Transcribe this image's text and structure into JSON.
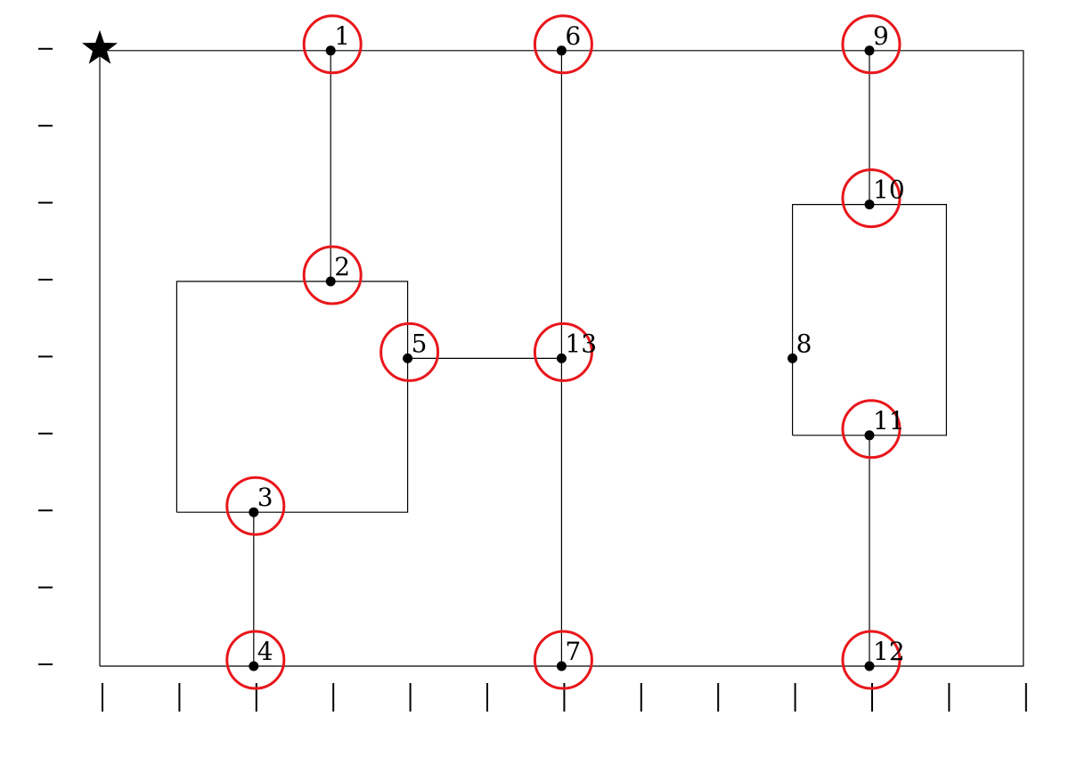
{
  "grid": {
    "cols": 12,
    "rows": 8
  },
  "start_marker": {
    "col": 0,
    "row": 8,
    "icon": "star-icon"
  },
  "colors": {
    "ring": "#e8161b",
    "line": "#000000"
  },
  "nodes": [
    {
      "id": "1",
      "label": "1",
      "col": 3,
      "row": 8,
      "ring": true
    },
    {
      "id": "2",
      "label": "2",
      "col": 3,
      "row": 5,
      "ring": true
    },
    {
      "id": "3",
      "label": "3",
      "col": 2,
      "row": 2,
      "ring": true
    },
    {
      "id": "4",
      "label": "4",
      "col": 2,
      "row": 0,
      "ring": true
    },
    {
      "id": "5",
      "label": "5",
      "col": 4,
      "row": 4,
      "ring": true
    },
    {
      "id": "6",
      "label": "6",
      "col": 6,
      "row": 8,
      "ring": true
    },
    {
      "id": "7",
      "label": "7",
      "col": 6,
      "row": 0,
      "ring": true
    },
    {
      "id": "8",
      "label": "8",
      "col": 9,
      "row": 4,
      "ring": false
    },
    {
      "id": "9",
      "label": "9",
      "col": 10,
      "row": 8,
      "ring": true
    },
    {
      "id": "10",
      "label": "10",
      "col": 10,
      "row": 6,
      "ring": true
    },
    {
      "id": "11",
      "label": "11",
      "col": 10,
      "row": 3,
      "ring": true
    },
    {
      "id": "12",
      "label": "12",
      "col": 10,
      "row": 0,
      "ring": true
    },
    {
      "id": "13",
      "label": "13",
      "col": 6,
      "row": 4,
      "ring": true
    }
  ],
  "polylines": [
    {
      "name": "outer-loop",
      "points": [
        [
          0,
          0
        ],
        [
          0,
          8
        ],
        [
          12,
          8
        ],
        [
          12,
          0
        ],
        [
          0,
          0
        ]
      ]
    },
    {
      "name": "left-loop",
      "points": [
        [
          1,
          2
        ],
        [
          1,
          5
        ],
        [
          4,
          5
        ],
        [
          4,
          2
        ],
        [
          1,
          2
        ]
      ]
    },
    {
      "name": "right-loop",
      "points": [
        [
          9,
          3
        ],
        [
          9,
          6
        ],
        [
          11,
          6
        ],
        [
          11,
          3
        ],
        [
          9,
          3
        ]
      ]
    },
    {
      "name": "edge-1-2",
      "points": [
        [
          3,
          8
        ],
        [
          3,
          5
        ]
      ]
    },
    {
      "name": "edge-3-4",
      "points": [
        [
          2,
          2
        ],
        [
          2,
          0
        ]
      ]
    },
    {
      "name": "edge-5-13",
      "points": [
        [
          4,
          4
        ],
        [
          6,
          4
        ]
      ]
    },
    {
      "name": "edge-6-7",
      "points": [
        [
          6,
          8
        ],
        [
          6,
          0
        ]
      ]
    },
    {
      "name": "edge-9-10",
      "points": [
        [
          10,
          8
        ],
        [
          10,
          6
        ]
      ]
    },
    {
      "name": "edge-11-12",
      "points": [
        [
          10,
          3
        ],
        [
          10,
          0
        ]
      ]
    }
  ]
}
